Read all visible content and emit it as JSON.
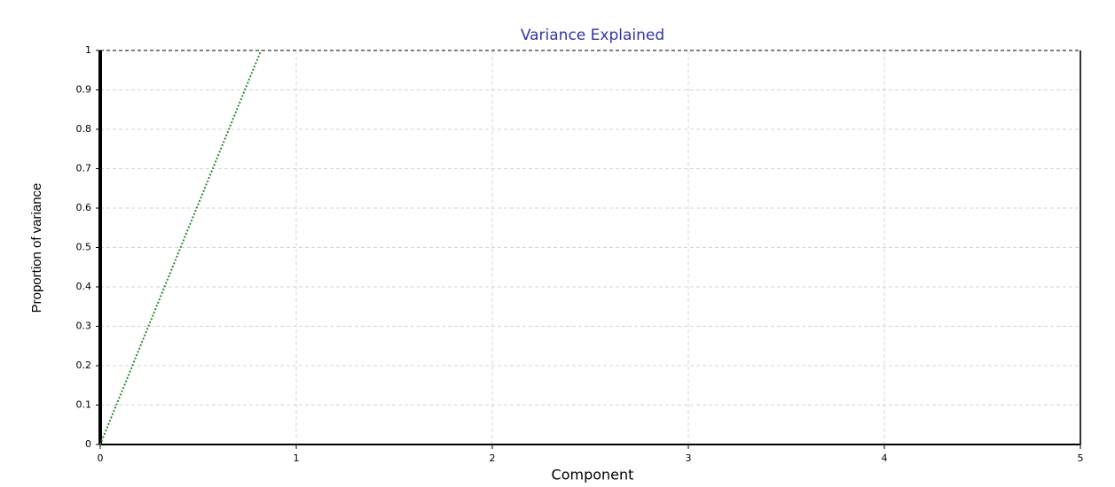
{
  "chart_data": {
    "type": "line",
    "title": "Variance Explained",
    "xlabel": "Component",
    "ylabel": "Proportion of variance",
    "x": [
      0,
      0.82
    ],
    "values": [
      0,
      1
    ],
    "color": "#2e8b2e",
    "xlim": [
      0,
      5
    ],
    "ylim": [
      0,
      1
    ],
    "xticks": [
      0,
      1,
      2,
      3,
      4,
      5
    ],
    "yticks": [
      0,
      0.1,
      0.2,
      0.3,
      0.4,
      0.5,
      0.6,
      0.7,
      0.8,
      0.9,
      1
    ],
    "grid": true
  }
}
